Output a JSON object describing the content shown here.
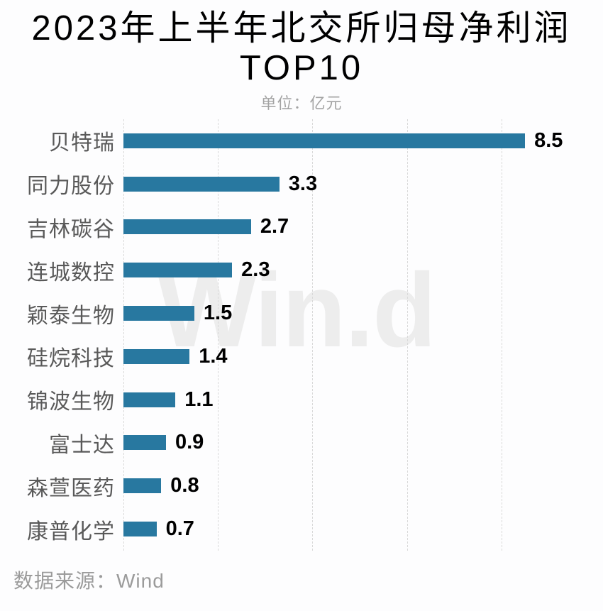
{
  "title": {
    "line1": "2023年上半年北交所归母净利润",
    "line2": "TOP10"
  },
  "subtitle": "单位：亿元",
  "watermark": "Win.d",
  "source": "数据来源：Wind",
  "colors": {
    "bar": "#2878a0",
    "gridline": "#d9d9d9",
    "category_label": "#595959",
    "value_label": "#000000",
    "subtitle": "#a3a3a3",
    "source": "#9b9b9b",
    "watermark": "#ededed",
    "background": "#fdfdfe",
    "title": "#000000"
  },
  "chart_data": {
    "type": "bar",
    "orientation": "horizontal",
    "title": "2023年上半年北交所归母净利润TOP10",
    "subtitle": "单位：亿元",
    "unit": "亿元",
    "categories": [
      "贝特瑞",
      "同力股份",
      "吉林碳谷",
      "连城数控",
      "颖泰生物",
      "硅烷科技",
      "锦波生物",
      "富士达",
      "森萱医药",
      "康普化学"
    ],
    "values": [
      8.5,
      3.3,
      2.7,
      2.3,
      1.5,
      1.4,
      1.1,
      0.9,
      0.8,
      0.7
    ],
    "value_labels": [
      "8.5",
      "3.3",
      "2.7",
      "2.3",
      "1.5",
      "1.4",
      "1.1",
      "0.9",
      "0.8",
      "0.7"
    ],
    "xlabel": "",
    "ylabel": "",
    "xlim": [
      0,
      10
    ],
    "gridline_values": [
      0,
      2,
      4,
      6,
      8
    ],
    "grid": "vertical-dashed",
    "legend": "none",
    "data_source": "Wind"
  }
}
